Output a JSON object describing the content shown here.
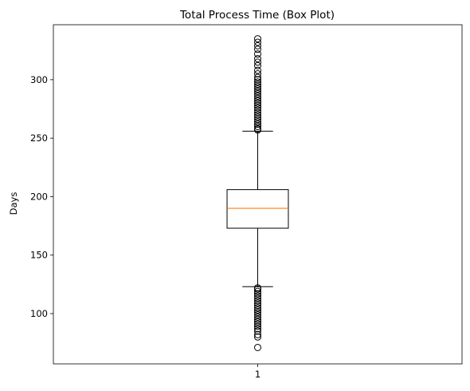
{
  "chart_data": {
    "type": "box",
    "title": "Total Process Time (Box Plot)",
    "xlabel": "",
    "ylabel": "Days",
    "categories": [
      "1"
    ],
    "ylim": [
      57,
      347
    ],
    "yticks": [
      100,
      150,
      200,
      250,
      300
    ],
    "grid": false,
    "boxes": [
      {
        "category": "1",
        "whisker_low": 123,
        "q1": 173,
        "median": 190,
        "q3": 206,
        "whisker_high": 256,
        "outliers_low": [
          71,
          80,
          82,
          85,
          87,
          89,
          91,
          93,
          95,
          97,
          99,
          101,
          103,
          105,
          107,
          109,
          111,
          113,
          115,
          117,
          119,
          121,
          122
        ],
        "outliers_high": [
          257,
          258,
          260,
          262,
          264,
          266,
          268,
          270,
          272,
          274,
          276,
          278,
          280,
          282,
          284,
          286,
          288,
          290,
          292,
          294,
          296,
          298,
          300,
          302,
          305,
          308,
          312,
          315,
          318,
          322,
          326,
          329,
          332,
          335
        ]
      }
    ],
    "colors": {
      "box": "#000000",
      "median": "#ff7f0e",
      "outlier": "#000000"
    }
  }
}
